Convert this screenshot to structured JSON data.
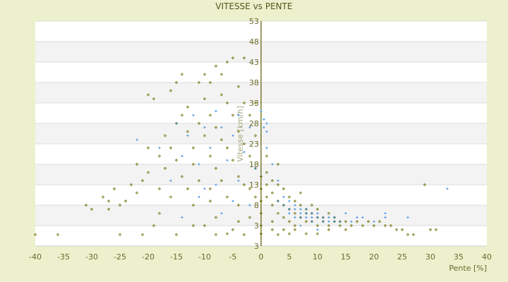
{
  "chart_data": {
    "type": "scatter",
    "title": "VITESSE vs PENTE",
    "xlabel": "Pente [%]",
    "ylabel": "Vitesse [km/h]",
    "xlim": [
      -40,
      40
    ],
    "ylim": [
      -2,
      53
    ],
    "x_ticks": [
      "-40",
      "-35",
      "-30",
      "-25",
      "-20",
      "-15",
      "-10",
      "-5",
      "0",
      "5",
      "10",
      "15",
      "20",
      "25",
      "30",
      "35",
      "40"
    ],
    "y_ticks": [
      "53",
      "48",
      "43",
      "38",
      "33",
      "28",
      "23",
      "18",
      "13",
      "8",
      "3",
      "3"
    ],
    "grid": "horizontal alternating bands",
    "legend": "none",
    "colors": {
      "series_1": "#6b6b00",
      "series_2": "#3a8fe0",
      "axis": "#5a5a00",
      "background": "#ecf0cd",
      "band": "#f3f3f3"
    },
    "series": [
      {
        "marker": "diamond",
        "points": [
          [
            -40,
            0.8
          ],
          [
            -36,
            0.8
          ],
          [
            -31,
            8
          ],
          [
            -30,
            7
          ],
          [
            -28,
            10
          ],
          [
            -27,
            9
          ],
          [
            -27,
            7
          ],
          [
            -26,
            12
          ],
          [
            -25,
            8
          ],
          [
            -24,
            9
          ],
          [
            -23,
            13
          ],
          [
            -22,
            11
          ],
          [
            -21,
            14
          ],
          [
            -21,
            0.8
          ],
          [
            -20,
            16
          ],
          [
            -20,
            35
          ],
          [
            -19,
            34
          ],
          [
            -19,
            3
          ],
          [
            -18,
            12
          ],
          [
            -18,
            20
          ],
          [
            -17,
            17
          ],
          [
            -17,
            25
          ],
          [
            -16,
            36
          ],
          [
            -16,
            22
          ],
          [
            -16,
            10
          ],
          [
            -15,
            28
          ],
          [
            -15,
            19
          ],
          [
            -15,
            38
          ],
          [
            -14,
            30
          ],
          [
            -14,
            40
          ],
          [
            -14,
            15
          ],
          [
            -13,
            26
          ],
          [
            -13,
            12
          ],
          [
            -13,
            32
          ],
          [
            -12,
            22
          ],
          [
            -12,
            18
          ],
          [
            -12,
            8
          ],
          [
            -11,
            28
          ],
          [
            -11,
            38
          ],
          [
            -11,
            14
          ],
          [
            -10,
            40
          ],
          [
            -10,
            34
          ],
          [
            -10,
            25
          ],
          [
            -10,
            3
          ],
          [
            -9,
            30
          ],
          [
            -9,
            20
          ],
          [
            -9,
            38
          ],
          [
            -9,
            12
          ],
          [
            -8,
            42
          ],
          [
            -8,
            27
          ],
          [
            -8,
            17
          ],
          [
            -8,
            5
          ],
          [
            -7,
            35
          ],
          [
            -7,
            24
          ],
          [
            -7,
            14
          ],
          [
            -7,
            40
          ],
          [
            -6,
            33
          ],
          [
            -6,
            22
          ],
          [
            -6,
            10
          ],
          [
            -6,
            43
          ],
          [
            -5,
            44
          ],
          [
            -5,
            30
          ],
          [
            -5,
            19
          ],
          [
            -5,
            2
          ],
          [
            -4,
            37
          ],
          [
            -4,
            26
          ],
          [
            -4,
            15
          ],
          [
            -4,
            8
          ],
          [
            -3,
            33
          ],
          [
            -3,
            23
          ],
          [
            -3,
            13
          ],
          [
            -3,
            44
          ],
          [
            -2,
            30
          ],
          [
            -2,
            20
          ],
          [
            -2,
            12
          ],
          [
            -2,
            5
          ],
          [
            -1,
            25
          ],
          [
            -1,
            17
          ],
          [
            -1,
            10
          ],
          [
            -1,
            33
          ],
          [
            0,
            15
          ],
          [
            0,
            12
          ],
          [
            0,
            9
          ],
          [
            0,
            6
          ],
          [
            0,
            3
          ],
          [
            0,
            1
          ],
          [
            1,
            16
          ],
          [
            1,
            13
          ],
          [
            1,
            10
          ],
          [
            1,
            20
          ],
          [
            2,
            14
          ],
          [
            2,
            11
          ],
          [
            2,
            8
          ],
          [
            2,
            4
          ],
          [
            3,
            13
          ],
          [
            3,
            9
          ],
          [
            3,
            6
          ],
          [
            3,
            18
          ],
          [
            4,
            12
          ],
          [
            4,
            8
          ],
          [
            4,
            5
          ],
          [
            4,
            2
          ],
          [
            5,
            10
          ],
          [
            5,
            7
          ],
          [
            5,
            4
          ],
          [
            6,
            9
          ],
          [
            6,
            6
          ],
          [
            6,
            3
          ],
          [
            7,
            8
          ],
          [
            7,
            5
          ],
          [
            7,
            11
          ],
          [
            8,
            7
          ],
          [
            8,
            4
          ],
          [
            8,
            6
          ],
          [
            9,
            6
          ],
          [
            9,
            4
          ],
          [
            9,
            8
          ],
          [
            10,
            5
          ],
          [
            10,
            7
          ],
          [
            10,
            3
          ],
          [
            11,
            5
          ],
          [
            11,
            4
          ],
          [
            12,
            6
          ],
          [
            12,
            3
          ],
          [
            13,
            4
          ],
          [
            13,
            5
          ],
          [
            14,
            4
          ],
          [
            14,
            3
          ],
          [
            15,
            4
          ],
          [
            16,
            3
          ],
          [
            17,
            4
          ],
          [
            18,
            3
          ],
          [
            19,
            4
          ],
          [
            20,
            3
          ],
          [
            21,
            4
          ],
          [
            22,
            3
          ],
          [
            23,
            3
          ],
          [
            24,
            2
          ],
          [
            25,
            2
          ],
          [
            26,
            0.8
          ],
          [
            27,
            0.8
          ],
          [
            29,
            13
          ],
          [
            30,
            2
          ],
          [
            31,
            2
          ],
          [
            5,
            1
          ],
          [
            10,
            1
          ],
          [
            -25,
            0.8
          ],
          [
            -15,
            0.8
          ],
          [
            -8,
            0.8
          ],
          [
            -3,
            0.8
          ],
          [
            3,
            0.8
          ],
          [
            8,
            1
          ],
          [
            -18,
            6
          ],
          [
            -12,
            3
          ],
          [
            -6,
            1
          ],
          [
            -20,
            22
          ],
          [
            -22,
            18
          ],
          [
            -9,
            9
          ],
          [
            -4,
            4
          ],
          [
            2,
            2
          ],
          [
            6,
            2
          ],
          [
            12,
            2
          ],
          [
            15,
            2
          ]
        ]
      },
      {
        "marker": "plus",
        "points": [
          [
            -22,
            24
          ],
          [
            -18,
            22
          ],
          [
            -16,
            14
          ],
          [
            -15,
            28
          ],
          [
            -14,
            20
          ],
          [
            -13,
            25
          ],
          [
            -12,
            30
          ],
          [
            -11,
            10
          ],
          [
            -11,
            18
          ],
          [
            -10,
            27
          ],
          [
            -9,
            22
          ],
          [
            -8,
            31
          ],
          [
            -8,
            13
          ],
          [
            -7,
            27
          ],
          [
            -7,
            6
          ],
          [
            -6,
            19
          ],
          [
            -5,
            25
          ],
          [
            -5,
            9
          ],
          [
            -4,
            30
          ],
          [
            -4,
            14
          ],
          [
            -3,
            21
          ],
          [
            -2,
            27
          ],
          [
            -2,
            8
          ],
          [
            -1,
            17
          ],
          [
            0,
            31
          ],
          [
            0.5,
            29
          ],
          [
            0.5,
            27
          ],
          [
            1,
            28
          ],
          [
            1,
            26
          ],
          [
            1,
            22
          ],
          [
            2,
            18
          ],
          [
            3,
            14
          ],
          [
            3,
            9
          ],
          [
            4,
            10
          ],
          [
            4,
            8
          ],
          [
            5,
            9
          ],
          [
            5,
            7
          ],
          [
            5,
            6
          ],
          [
            6,
            8
          ],
          [
            6,
            7
          ],
          [
            6,
            5
          ],
          [
            7,
            7
          ],
          [
            7,
            6
          ],
          [
            7,
            5
          ],
          [
            8,
            7
          ],
          [
            8,
            6
          ],
          [
            8,
            5
          ],
          [
            9,
            6
          ],
          [
            9,
            5
          ],
          [
            9,
            4
          ],
          [
            10,
            6
          ],
          [
            10,
            5
          ],
          [
            11,
            5
          ],
          [
            11,
            4
          ],
          [
            12,
            5
          ],
          [
            12,
            4
          ],
          [
            13,
            5
          ],
          [
            13,
            4
          ],
          [
            14,
            4
          ],
          [
            15,
            6
          ],
          [
            16,
            4
          ],
          [
            17,
            5
          ],
          [
            18,
            5
          ],
          [
            20,
            4
          ],
          [
            22,
            6
          ],
          [
            22,
            5
          ],
          [
            26,
            5
          ],
          [
            33,
            12
          ],
          [
            7,
            3
          ],
          [
            10,
            2
          ],
          [
            -14,
            5
          ],
          [
            -10,
            12
          ]
        ]
      }
    ]
  }
}
